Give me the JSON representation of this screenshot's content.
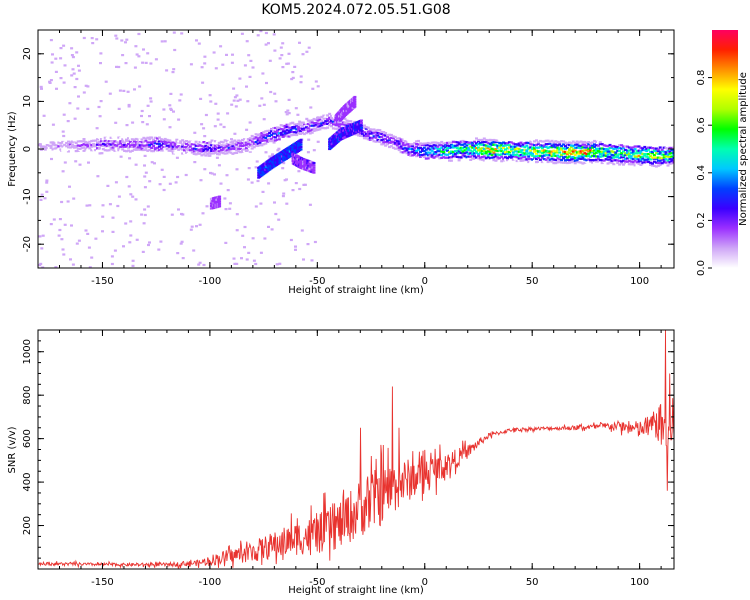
{
  "figure": {
    "title": "KOM5.2024.072.05.51.G08"
  },
  "chart_data": [
    {
      "type": "heatmap",
      "xlabel": "Height of straight line (km)",
      "ylabel": "Frequency (Hz)",
      "xlim": [
        -180,
        116
      ],
      "ylim": [
        -25,
        25
      ],
      "xticks": [
        -150,
        -100,
        -50,
        0,
        50,
        100
      ],
      "yticks": [
        -20,
        -10,
        0,
        10,
        20
      ],
      "colorbar": {
        "label": "Normalized spectral amplitude",
        "range": [
          0,
          1
        ],
        "ticks": [
          "0.0",
          "0.2",
          "0.4",
          "0.6",
          "0.8"
        ],
        "colormap": "gist_rainbow_reversed",
        "colors": [
          "#ffffff",
          "#cfa6f7",
          "#9b30ff",
          "#3a00ff",
          "#0040ff",
          "#00c8ff",
          "#00ffb0",
          "#00ff00",
          "#b0ff00",
          "#ffff00",
          "#ff9000",
          "#ff2000",
          "#ff0060"
        ]
      },
      "ridge": [
        {
          "x": -180,
          "f": 0.5,
          "a": 0.12
        },
        {
          "x": -160,
          "f": 0.8,
          "a": 0.2
        },
        {
          "x": -150,
          "f": 1.0,
          "a": 0.25
        },
        {
          "x": -135,
          "f": 0.8,
          "a": 0.25
        },
        {
          "x": -125,
          "f": 1.0,
          "a": 0.35
        },
        {
          "x": -115,
          "f": 0.5,
          "a": 0.2
        },
        {
          "x": -105,
          "f": 0.0,
          "a": 0.35
        },
        {
          "x": -95,
          "f": 0.3,
          "a": 0.3
        },
        {
          "x": -85,
          "f": 0.5,
          "a": 0.25
        },
        {
          "x": -75,
          "f": 2.5,
          "a": 0.35
        },
        {
          "x": -65,
          "f": 4.0,
          "a": 0.4
        },
        {
          "x": -55,
          "f": 4.5,
          "a": 0.3
        },
        {
          "x": -45,
          "f": 6.0,
          "a": 0.3
        },
        {
          "x": -35,
          "f": 4.5,
          "a": 0.3
        },
        {
          "x": -25,
          "f": 3.0,
          "a": 0.35
        },
        {
          "x": -15,
          "f": 1.5,
          "a": 0.3
        },
        {
          "x": -8,
          "f": 0.0,
          "a": 0.4
        },
        {
          "x": 0,
          "f": -0.5,
          "a": 0.5
        },
        {
          "x": 10,
          "f": -0.3,
          "a": 0.6
        },
        {
          "x": 20,
          "f": 0.0,
          "a": 0.8
        },
        {
          "x": 30,
          "f": -0.2,
          "a": 0.9
        },
        {
          "x": 40,
          "f": -0.3,
          "a": 0.75
        },
        {
          "x": 50,
          "f": -0.5,
          "a": 0.85
        },
        {
          "x": 60,
          "f": -0.6,
          "a": 0.9
        },
        {
          "x": 70,
          "f": -0.7,
          "a": 0.95
        },
        {
          "x": 80,
          "f": -0.6,
          "a": 0.85
        },
        {
          "x": 90,
          "f": -1.0,
          "a": 0.7
        },
        {
          "x": 100,
          "f": -1.2,
          "a": 0.8
        },
        {
          "x": 110,
          "f": -1.5,
          "a": 0.75
        },
        {
          "x": 116,
          "f": -1.2,
          "a": 0.6
        }
      ],
      "branches": [
        {
          "x": [
            -78,
            -72,
            -65,
            -58
          ],
          "f": [
            -5,
            -3,
            -1,
            1
          ],
          "a": 0.35
        },
        {
          "x": [
            -42,
            -38,
            -33
          ],
          "f": [
            6,
            8,
            10
          ],
          "a": 0.2
        },
        {
          "x": [
            -45,
            -40,
            -35,
            -30
          ],
          "f": [
            1,
            3,
            4,
            5
          ],
          "a": 0.3
        },
        {
          "x": [
            -100,
            -96
          ],
          "f": [
            -11.5,
            -11
          ],
          "a": 0.2
        },
        {
          "x": [
            -62,
            -58,
            -52
          ],
          "f": [
            -2,
            -3,
            -4
          ],
          "a": 0.22
        }
      ]
    },
    {
      "type": "line",
      "xlabel": "Height of straight line (km)",
      "ylabel": "SNR (v/v)",
      "xlim": [
        -180,
        116
      ],
      "ylim": [
        0,
        1100
      ],
      "xticks": [
        -150,
        -100,
        -50,
        0,
        50,
        100
      ],
      "yticks": [
        200,
        400,
        600,
        800,
        1000
      ],
      "line_color": "#e8332f",
      "series": [
        {
          "x": [
            -180,
            -160,
            -140,
            -120,
            -105,
            -100,
            -90,
            -80,
            -70,
            -60,
            -50,
            -40,
            -30,
            -20,
            -10,
            0,
            10,
            20,
            25,
            30,
            40,
            50,
            60,
            70,
            80,
            90,
            100,
            105,
            110,
            113,
            116
          ],
          "values": [
            25,
            22,
            20,
            20,
            28,
            40,
            60,
            80,
            110,
            140,
            160,
            200,
            280,
            340,
            400,
            440,
            480,
            540,
            580,
            615,
            640,
            645,
            648,
            650,
            655,
            660,
            640,
            660,
            680,
            600,
            650
          ],
          "noise": [
            10,
            10,
            10,
            12,
            20,
            35,
            50,
            70,
            90,
            110,
            130,
            160,
            190,
            200,
            150,
            110,
            80,
            45,
            30,
            15,
            12,
            12,
            12,
            15,
            18,
            30,
            60,
            80,
            120,
            180,
            100
          ],
          "spikes": [
            {
              "x": -30,
              "v": 650
            },
            {
              "x": -25,
              "v": 520
            },
            {
              "x": -20,
              "v": 530
            },
            {
              "x": -15,
              "v": 840
            },
            {
              "x": -12,
              "v": 650
            },
            {
              "x": 112,
              "v": 1100
            },
            {
              "x": 113,
              "v": 360
            },
            {
              "x": 114,
              "v": 900
            }
          ]
        }
      ]
    }
  ]
}
